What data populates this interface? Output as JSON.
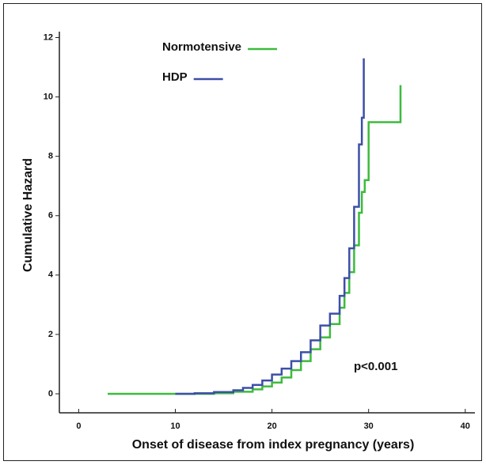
{
  "chart_data": {
    "type": "step-line",
    "xlabel": "Onset of disease from index pregnancy (years)",
    "ylabel": "Cumulative Hazard",
    "annotation": "p<0.001",
    "xlim": [
      -2,
      41
    ],
    "xticks": [
      0,
      10,
      20,
      30,
      40
    ],
    "ylim": [
      -0.64,
      12.2
    ],
    "yticks": [
      0,
      2,
      4,
      6,
      8,
      10,
      12
    ],
    "legend": "upper left",
    "series": [
      {
        "name": "Normotensive",
        "color": "#3dbb3d",
        "x": [
          3,
          10,
          14,
          16,
          18,
          19,
          20,
          21,
          22,
          23,
          24,
          25,
          26,
          27,
          27.5,
          28,
          28.5,
          29,
          29.3,
          29.6,
          30,
          33.3,
          33.3
        ],
        "values": [
          0,
          0,
          0.02,
          0.07,
          0.15,
          0.25,
          0.38,
          0.55,
          0.8,
          1.1,
          1.5,
          1.9,
          2.35,
          2.9,
          3.4,
          4.1,
          5.0,
          6.1,
          6.8,
          7.2,
          9.15,
          9.15,
          10.4
        ]
      },
      {
        "name": "HDP",
        "color": "#3d4fa8",
        "x": [
          10,
          12,
          14,
          16,
          17,
          18,
          19,
          20,
          21,
          22,
          23,
          24,
          25,
          26,
          27,
          27.5,
          28,
          28.5,
          29,
          29.3,
          29.5,
          29.5
        ],
        "values": [
          0,
          0.02,
          0.06,
          0.12,
          0.2,
          0.3,
          0.45,
          0.65,
          0.85,
          1.1,
          1.4,
          1.8,
          2.3,
          2.7,
          3.3,
          3.9,
          4.9,
          6.3,
          8.4,
          9.3,
          9.3,
          11.3
        ]
      }
    ]
  }
}
